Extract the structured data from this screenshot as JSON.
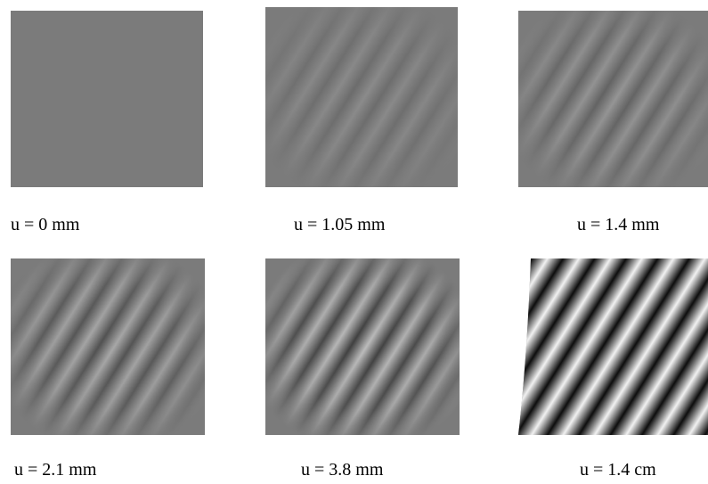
{
  "panels": [
    {
      "caption": "u = 0 mm"
    },
    {
      "caption": "u = 1.05 mm"
    },
    {
      "caption": "u = 1.4 mm"
    },
    {
      "caption": "u = 2.1 mm"
    },
    {
      "caption": "u = 3.8 mm"
    },
    {
      "caption": "u = 1.4 cm"
    }
  ]
}
